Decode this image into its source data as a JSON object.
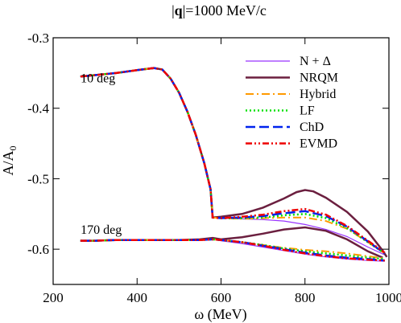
{
  "chart_data": {
    "type": "line",
    "title_prefix": "|",
    "title_bold": "q",
    "title_suffix": "|=1000 MeV/c",
    "xlabel": "ω (MeV)",
    "ylabel_main": "A/A",
    "ylabel_sub": "0",
    "xlim": [
      200,
      1000
    ],
    "ylim": [
      -0.65,
      -0.3
    ],
    "xticks": [
      200,
      400,
      600,
      800,
      1000
    ],
    "xtick_labels": [
      "200",
      "400",
      "600",
      "800",
      "1000"
    ],
    "yticks": [
      -0.6,
      -0.5,
      -0.4,
      -0.3
    ],
    "ytick_labels": [
      "-0.6",
      "-0.5",
      "-0.4",
      "-0.3"
    ],
    "grid": false,
    "legend_position": "top-right",
    "annotations": [
      {
        "text": "10 deg",
        "x": 300,
        "y": -0.363
      },
      {
        "text": "170 deg",
        "x": 300,
        "y": -0.578
      }
    ],
    "series": [
      {
        "name": "N + Δ",
        "color": "#9933ff",
        "dash": "solid",
        "width": 1.2,
        "curves": [
          [
            [
              265,
              -0.355
            ],
            [
              300,
              -0.353
            ],
            [
              350,
              -0.35
            ],
            [
              400,
              -0.346
            ],
            [
              440,
              -0.343
            ],
            [
              460,
              -0.345
            ],
            [
              480,
              -0.358
            ],
            [
              500,
              -0.378
            ],
            [
              520,
              -0.405
            ],
            [
              540,
              -0.438
            ],
            [
              560,
              -0.478
            ],
            [
              575,
              -0.515
            ],
            [
              580,
              -0.555
            ],
            [
              600,
              -0.556
            ],
            [
              650,
              -0.557
            ],
            [
              700,
              -0.558
            ],
            [
              750,
              -0.56
            ],
            [
              800,
              -0.565
            ],
            [
              850,
              -0.572
            ],
            [
              900,
              -0.582
            ],
            [
              950,
              -0.597
            ],
            [
              990,
              -0.608
            ]
          ],
          [
            [
              265,
              -0.588
            ],
            [
              300,
              -0.588
            ],
            [
              350,
              -0.587
            ],
            [
              400,
              -0.587
            ],
            [
              450,
              -0.587
            ],
            [
              500,
              -0.587
            ],
            [
              550,
              -0.587
            ],
            [
              580,
              -0.586
            ],
            [
              600,
              -0.588
            ],
            [
              650,
              -0.592
            ],
            [
              700,
              -0.597
            ],
            [
              750,
              -0.602
            ],
            [
              800,
              -0.607
            ],
            [
              850,
              -0.611
            ],
            [
              900,
              -0.614
            ],
            [
              950,
              -0.616
            ],
            [
              990,
              -0.617
            ]
          ]
        ]
      },
      {
        "name": "NRQM",
        "color": "#6b1f3f",
        "dash": "solid",
        "width": 2.5,
        "curves": [
          [
            [
              265,
              -0.355
            ],
            [
              300,
              -0.353
            ],
            [
              350,
              -0.35
            ],
            [
              400,
              -0.346
            ],
            [
              440,
              -0.343
            ],
            [
              460,
              -0.345
            ],
            [
              480,
              -0.358
            ],
            [
              500,
              -0.378
            ],
            [
              520,
              -0.405
            ],
            [
              540,
              -0.438
            ],
            [
              560,
              -0.478
            ],
            [
              575,
              -0.515
            ],
            [
              580,
              -0.555
            ],
            [
              600,
              -0.554
            ],
            [
              650,
              -0.55
            ],
            [
              700,
              -0.541
            ],
            [
              750,
              -0.528
            ],
            [
              780,
              -0.519
            ],
            [
              800,
              -0.516
            ],
            [
              820,
              -0.518
            ],
            [
              850,
              -0.527
            ],
            [
              900,
              -0.547
            ],
            [
              950,
              -0.575
            ],
            [
              985,
              -0.602
            ],
            [
              995,
              -0.611
            ]
          ],
          [
            [
              265,
              -0.588
            ],
            [
              300,
              -0.588
            ],
            [
              350,
              -0.587
            ],
            [
              400,
              -0.587
            ],
            [
              450,
              -0.587
            ],
            [
              500,
              -0.587
            ],
            [
              550,
              -0.586
            ],
            [
              580,
              -0.584
            ],
            [
              600,
              -0.586
            ],
            [
              650,
              -0.583
            ],
            [
              700,
              -0.578
            ],
            [
              750,
              -0.572
            ],
            [
              800,
              -0.569
            ],
            [
              850,
              -0.574
            ],
            [
              900,
              -0.586
            ],
            [
              950,
              -0.603
            ],
            [
              985,
              -0.612
            ]
          ]
        ]
      },
      {
        "name": "Hybrid",
        "color": "#ff9900",
        "dash": "10,4,2,4",
        "width": 2,
        "curves": [
          [
            [
              265,
              -0.355
            ],
            [
              300,
              -0.353
            ],
            [
              350,
              -0.35
            ],
            [
              400,
              -0.346
            ],
            [
              440,
              -0.343
            ],
            [
              460,
              -0.345
            ],
            [
              480,
              -0.358
            ],
            [
              500,
              -0.378
            ],
            [
              520,
              -0.405
            ],
            [
              540,
              -0.438
            ],
            [
              560,
              -0.478
            ],
            [
              575,
              -0.515
            ],
            [
              580,
              -0.555
            ],
            [
              600,
              -0.556
            ],
            [
              650,
              -0.557
            ],
            [
              700,
              -0.556
            ],
            [
              750,
              -0.555
            ],
            [
              800,
              -0.555
            ],
            [
              850,
              -0.56
            ],
            [
              900,
              -0.571
            ],
            [
              950,
              -0.59
            ],
            [
              990,
              -0.606
            ]
          ],
          [
            [
              265,
              -0.588
            ],
            [
              300,
              -0.588
            ],
            [
              350,
              -0.587
            ],
            [
              400,
              -0.587
            ],
            [
              450,
              -0.587
            ],
            [
              500,
              -0.587
            ],
            [
              550,
              -0.587
            ],
            [
              580,
              -0.586
            ],
            [
              600,
              -0.587
            ],
            [
              650,
              -0.59
            ],
            [
              700,
              -0.594
            ],
            [
              750,
              -0.598
            ],
            [
              800,
              -0.601
            ],
            [
              850,
              -0.603
            ],
            [
              900,
              -0.606
            ],
            [
              950,
              -0.61
            ],
            [
              990,
              -0.613
            ]
          ]
        ]
      },
      {
        "name": "LF",
        "color": "#00e000",
        "dash": "2,3",
        "width": 2.5,
        "curves": [
          [
            [
              265,
              -0.355
            ],
            [
              300,
              -0.353
            ],
            [
              350,
              -0.35
            ],
            [
              400,
              -0.346
            ],
            [
              440,
              -0.343
            ],
            [
              460,
              -0.345
            ],
            [
              480,
              -0.358
            ],
            [
              500,
              -0.378
            ],
            [
              520,
              -0.405
            ],
            [
              540,
              -0.438
            ],
            [
              560,
              -0.478
            ],
            [
              575,
              -0.515
            ],
            [
              580,
              -0.555
            ],
            [
              600,
              -0.556
            ],
            [
              650,
              -0.556
            ],
            [
              700,
              -0.555
            ],
            [
              750,
              -0.552
            ],
            [
              800,
              -0.55
            ],
            [
              850,
              -0.556
            ],
            [
              900,
              -0.57
            ],
            [
              950,
              -0.59
            ],
            [
              990,
              -0.606
            ]
          ],
          [
            [
              265,
              -0.588
            ],
            [
              300,
              -0.588
            ],
            [
              350,
              -0.587
            ],
            [
              400,
              -0.587
            ],
            [
              450,
              -0.587
            ],
            [
              500,
              -0.587
            ],
            [
              550,
              -0.587
            ],
            [
              580,
              -0.586
            ],
            [
              600,
              -0.587
            ],
            [
              650,
              -0.59
            ],
            [
              700,
              -0.594
            ],
            [
              750,
              -0.599
            ],
            [
              800,
              -0.603
            ],
            [
              850,
              -0.606
            ],
            [
              900,
              -0.609
            ],
            [
              950,
              -0.612
            ],
            [
              990,
              -0.614
            ]
          ]
        ]
      },
      {
        "name": "ChD",
        "color": "#0022ee",
        "dash": "12,5",
        "width": 2.5,
        "curves": [
          [
            [
              265,
              -0.355
            ],
            [
              300,
              -0.353
            ],
            [
              350,
              -0.35
            ],
            [
              400,
              -0.346
            ],
            [
              440,
              -0.343
            ],
            [
              460,
              -0.345
            ],
            [
              480,
              -0.358
            ],
            [
              500,
              -0.378
            ],
            [
              520,
              -0.405
            ],
            [
              540,
              -0.438
            ],
            [
              560,
              -0.478
            ],
            [
              575,
              -0.515
            ],
            [
              580,
              -0.555
            ],
            [
              600,
              -0.556
            ],
            [
              650,
              -0.555
            ],
            [
              700,
              -0.553
            ],
            [
              750,
              -0.549
            ],
            [
              800,
              -0.546
            ],
            [
              850,
              -0.553
            ],
            [
              900,
              -0.568
            ],
            [
              950,
              -0.589
            ],
            [
              990,
              -0.606
            ]
          ],
          [
            [
              265,
              -0.588
            ],
            [
              300,
              -0.588
            ],
            [
              350,
              -0.587
            ],
            [
              400,
              -0.587
            ],
            [
              450,
              -0.587
            ],
            [
              500,
              -0.587
            ],
            [
              550,
              -0.587
            ],
            [
              580,
              -0.586
            ],
            [
              600,
              -0.587
            ],
            [
              650,
              -0.59
            ],
            [
              700,
              -0.595
            ],
            [
              750,
              -0.6
            ],
            [
              800,
              -0.605
            ],
            [
              850,
              -0.609
            ],
            [
              900,
              -0.612
            ],
            [
              950,
              -0.614
            ],
            [
              990,
              -0.616
            ]
          ]
        ]
      },
      {
        "name": "EVMD",
        "color": "#ee0000",
        "dash": "8,3,2,3,2,3",
        "width": 2.5,
        "curves": [
          [
            [
              265,
              -0.355
            ],
            [
              300,
              -0.353
            ],
            [
              350,
              -0.35
            ],
            [
              400,
              -0.346
            ],
            [
              440,
              -0.343
            ],
            [
              460,
              -0.345
            ],
            [
              480,
              -0.358
            ],
            [
              500,
              -0.378
            ],
            [
              520,
              -0.405
            ],
            [
              540,
              -0.438
            ],
            [
              560,
              -0.478
            ],
            [
              575,
              -0.515
            ],
            [
              580,
              -0.555
            ],
            [
              600,
              -0.556
            ],
            [
              650,
              -0.554
            ],
            [
              700,
              -0.551
            ],
            [
              750,
              -0.546
            ],
            [
              800,
              -0.543
            ],
            [
              850,
              -0.551
            ],
            [
              900,
              -0.567
            ],
            [
              950,
              -0.588
            ],
            [
              990,
              -0.605
            ]
          ],
          [
            [
              265,
              -0.588
            ],
            [
              300,
              -0.588
            ],
            [
              350,
              -0.587
            ],
            [
              400,
              -0.587
            ],
            [
              450,
              -0.587
            ],
            [
              500,
              -0.587
            ],
            [
              550,
              -0.587
            ],
            [
              580,
              -0.586
            ],
            [
              600,
              -0.587
            ],
            [
              650,
              -0.59
            ],
            [
              700,
              -0.595
            ],
            [
              750,
              -0.601
            ],
            [
              800,
              -0.606
            ],
            [
              850,
              -0.61
            ],
            [
              900,
              -0.613
            ],
            [
              950,
              -0.615
            ],
            [
              990,
              -0.616
            ]
          ]
        ]
      }
    ]
  }
}
